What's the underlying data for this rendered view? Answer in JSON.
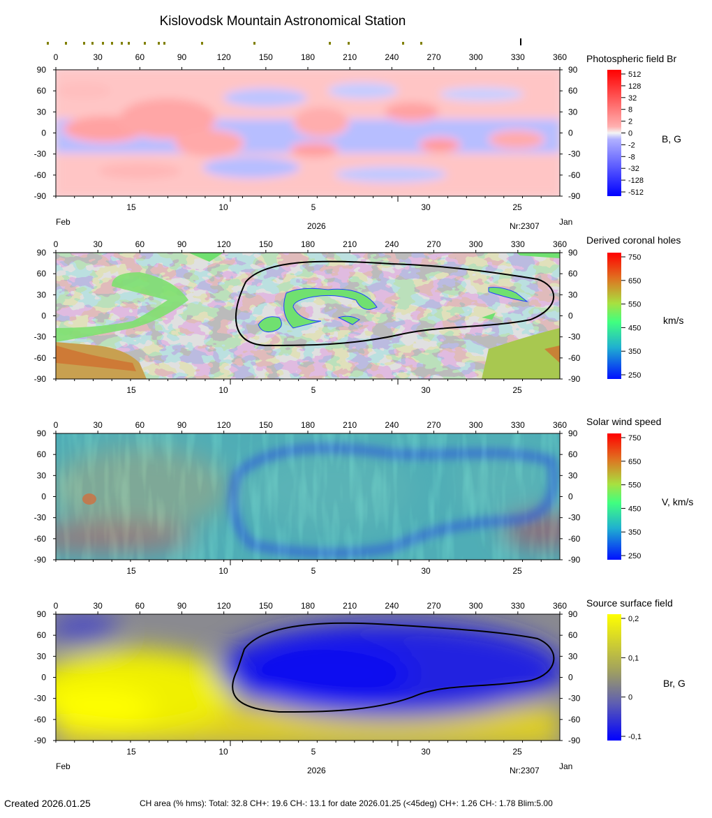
{
  "title": "Kislovodsk Mountain Astronomical Station",
  "lon_ticks": [
    "0",
    "30",
    "60",
    "90",
    "120",
    "150",
    "180",
    "210",
    "240",
    "270",
    "300",
    "330",
    "360"
  ],
  "lat_ticks": [
    "90",
    "60",
    "30",
    "0",
    "-30",
    "-60",
    "-90"
  ],
  "date_ticks": [
    "15",
    "10",
    "5",
    "30",
    "25"
  ],
  "date_labels": {
    "left": "Feb",
    "center": "2026",
    "right_top": "Nr:2307",
    "right_end": "Jan"
  },
  "top_ruler_ticks": [
    "0",
    "30",
    "60",
    "90",
    "120",
    "150",
    "180",
    "210",
    "240",
    "270",
    "300",
    "330",
    "360"
  ],
  "panels": [
    {
      "title": "Photospheric field Br",
      "unit": "B, G",
      "scale_labels": [
        "512",
        "128",
        "32",
        "8",
        "2",
        "0",
        "-2",
        "-8",
        "-32",
        "-128",
        "-512"
      ]
    },
    {
      "title": "Derived coronal holes",
      "unit": "km/s",
      "scale_labels": [
        "750",
        "650",
        "550",
        "450",
        "350",
        "250"
      ]
    },
    {
      "title": "Solar wind speed",
      "unit": "V, km/s",
      "scale_labels": [
        "750",
        "650",
        "550",
        "450",
        "350",
        "250"
      ]
    },
    {
      "title": "Source surface field",
      "unit": "Br, G",
      "scale_labels": [
        "0,2",
        "0,1",
        "0",
        "-0,1"
      ]
    }
  ],
  "created": "Created  2026.01.25",
  "footer_stats": "CH area (% hms): Total: 32.8 CH+: 19.6   CH-: 13.1 for date 2026.01.25 (<45deg) CH+: 1.26    CH-: 1.78 Blim:5.00",
  "colors": {
    "positive": "#ff2020",
    "negative": "#2030ff",
    "ch_gray_dark": "#808080",
    "ch_gray_light": "#c0c0c0",
    "ss_yellow": "#f5f000",
    "ss_blue": "#1010e0"
  },
  "chart_data": [
    {
      "type": "heatmap",
      "title": "Photospheric field Br",
      "x_range": [
        0,
        360
      ],
      "y_range": [
        -90,
        90
      ],
      "colorbar_unit": "B, G",
      "colorbar_ticks": [
        512,
        128,
        32,
        8,
        2,
        0,
        -2,
        -8,
        -32,
        -128,
        -512
      ]
    },
    {
      "type": "heatmap",
      "title": "Derived coronal holes",
      "x_range": [
        0,
        360
      ],
      "y_range": [
        -90,
        90
      ],
      "colorbar_unit": "km/s",
      "colorbar_range": [
        250,
        750
      ]
    },
    {
      "type": "heatmap",
      "title": "Solar wind speed",
      "x_range": [
        0,
        360
      ],
      "y_range": [
        -90,
        90
      ],
      "colorbar_unit": "V, km/s",
      "colorbar_range": [
        250,
        750
      ]
    },
    {
      "type": "heatmap",
      "title": "Source surface field",
      "x_range": [
        0,
        360
      ],
      "y_range": [
        -90,
        90
      ],
      "colorbar_unit": "Br, G",
      "colorbar_range": [
        -0.1,
        0.2
      ]
    }
  ]
}
